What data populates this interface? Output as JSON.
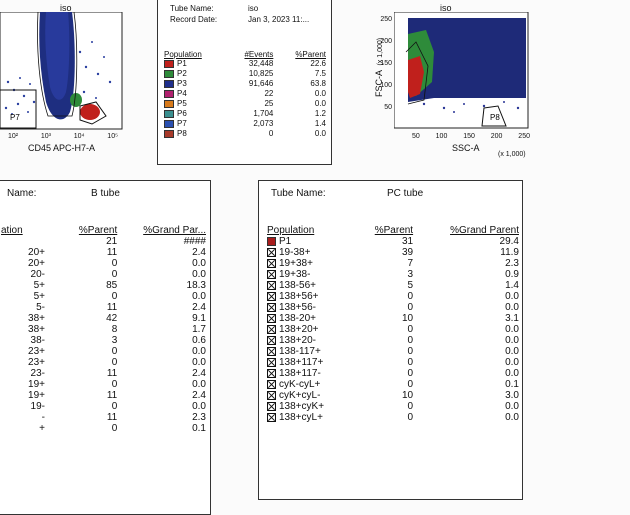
{
  "plot_left": {
    "title": "iso",
    "x_axis": "CD45 APC-H7-A",
    "x_ticks": [
      "10²",
      "10³",
      "10⁴",
      "10⁵"
    ],
    "gate": "P7"
  },
  "plot_right": {
    "title": "iso",
    "x_axis": "SSC-A",
    "x_axis_unit": "(x 1,000)",
    "y_axis": "FSC-A",
    "y_axis_unit": "(x 1,000)",
    "x_ticks": [
      "50",
      "100",
      "150",
      "200",
      "250"
    ],
    "y_ticks": [
      "250",
      "200",
      "150",
      "100",
      "50"
    ],
    "gate": "P8"
  },
  "iso_table": {
    "tube_name_label": "Tube Name:",
    "tube_name_value": "iso",
    "record_date_label": "Record Date:",
    "record_date_value": "Jan 3, 2023 11:...",
    "headers": [
      "Population",
      "#Events",
      "%Parent"
    ],
    "rows": [
      {
        "name": "P1",
        "events": "32,448",
        "parent": "22.6",
        "color": "#c0201c"
      },
      {
        "name": "P2",
        "events": "10,825",
        "parent": "7.5",
        "color": "#2e8b3a"
      },
      {
        "name": "P3",
        "events": "91,646",
        "parent": "63.8",
        "color": "#1f2f8c"
      },
      {
        "name": "P4",
        "events": "22",
        "parent": "0.0",
        "color": "#b0206e"
      },
      {
        "name": "P5",
        "events": "25",
        "parent": "0.0",
        "color": "#d87a1a"
      },
      {
        "name": "P6",
        "events": "1,704",
        "parent": "1.2",
        "color": "#3a8f8f"
      },
      {
        "name": "P7",
        "events": "2,073",
        "parent": "1.4",
        "color": "#2a50b0"
      },
      {
        "name": "P8",
        "events": "0",
        "parent": "0.0",
        "color": "#a83a2a"
      }
    ]
  },
  "b_table": {
    "tube_name_label": "Name:",
    "tube_name_value": "B tube",
    "headers": [
      "ation",
      "%Parent",
      "%Grand Par..."
    ],
    "rows": [
      {
        "name": "",
        "parent": "21",
        "grand": "####"
      },
      {
        "name": "20+",
        "parent": "11",
        "grand": "2.4"
      },
      {
        "name": "20+",
        "parent": "0",
        "grand": "0.0"
      },
      {
        "name": "20-",
        "parent": "0",
        "grand": "0.0"
      },
      {
        "name": "5+",
        "parent": "85",
        "grand": "18.3"
      },
      {
        "name": "5+",
        "parent": "0",
        "grand": "0.0"
      },
      {
        "name": "5-",
        "parent": "11",
        "grand": "2.4"
      },
      {
        "name": "38+",
        "parent": "42",
        "grand": "9.1"
      },
      {
        "name": "38+",
        "parent": "8",
        "grand": "1.7"
      },
      {
        "name": "38-",
        "parent": "3",
        "grand": "0.6"
      },
      {
        "name": "23+",
        "parent": "0",
        "grand": "0.0"
      },
      {
        "name": "23+",
        "parent": "0",
        "grand": "0.0"
      },
      {
        "name": "23-",
        "parent": "11",
        "grand": "2.4"
      },
      {
        "name": "19+",
        "parent": "0",
        "grand": "0.0"
      },
      {
        "name": "19+",
        "parent": "11",
        "grand": "2.4"
      },
      {
        "name": "19-",
        "parent": "0",
        "grand": "0.0"
      },
      {
        "name": "-",
        "parent": "11",
        "grand": "2.3"
      },
      {
        "name": "+",
        "parent": "0",
        "grand": "0.1"
      }
    ]
  },
  "pc_table": {
    "tube_name_label": "Tube Name:",
    "tube_name_value": "PC tube",
    "headers": [
      "Population",
      "%Parent",
      "%Grand Parent"
    ],
    "rows": [
      {
        "name": "P1",
        "parent": "31",
        "grand": "29.4",
        "marker": "red"
      },
      {
        "name": "19-38+",
        "parent": "39",
        "grand": "11.9",
        "marker": "x"
      },
      {
        "name": "19+38+",
        "parent": "7",
        "grand": "2.3",
        "marker": "x"
      },
      {
        "name": "19+38-",
        "parent": "3",
        "grand": "0.9",
        "marker": "x"
      },
      {
        "name": "138-56+",
        "parent": "5",
        "grand": "1.4",
        "marker": "x"
      },
      {
        "name": "138+56+",
        "parent": "0",
        "grand": "0.0",
        "marker": "x"
      },
      {
        "name": "138+56-",
        "parent": "0",
        "grand": "0.0",
        "marker": "x"
      },
      {
        "name": "138-20+",
        "parent": "10",
        "grand": "3.1",
        "marker": "x"
      },
      {
        "name": "138+20+",
        "parent": "0",
        "grand": "0.0",
        "marker": "x"
      },
      {
        "name": "138+20-",
        "parent": "0",
        "grand": "0.0",
        "marker": "x"
      },
      {
        "name": "138-117+",
        "parent": "0",
        "grand": "0.0",
        "marker": "x"
      },
      {
        "name": "138+117+",
        "parent": "0",
        "grand": "0.0",
        "marker": "x"
      },
      {
        "name": "138+117-",
        "parent": "0",
        "grand": "0.0",
        "marker": "x"
      },
      {
        "name": "cyK-cyL+",
        "parent": "0",
        "grand": "0.1",
        "marker": "x"
      },
      {
        "name": "cyK+cyL-",
        "parent": "10",
        "grand": "3.0",
        "marker": "x"
      },
      {
        "name": "138+cyK+",
        "parent": "0",
        "grand": "0.0",
        "marker": "x"
      },
      {
        "name": "138+cyL+",
        "parent": "0",
        "grand": "0.0",
        "marker": "x"
      }
    ]
  }
}
